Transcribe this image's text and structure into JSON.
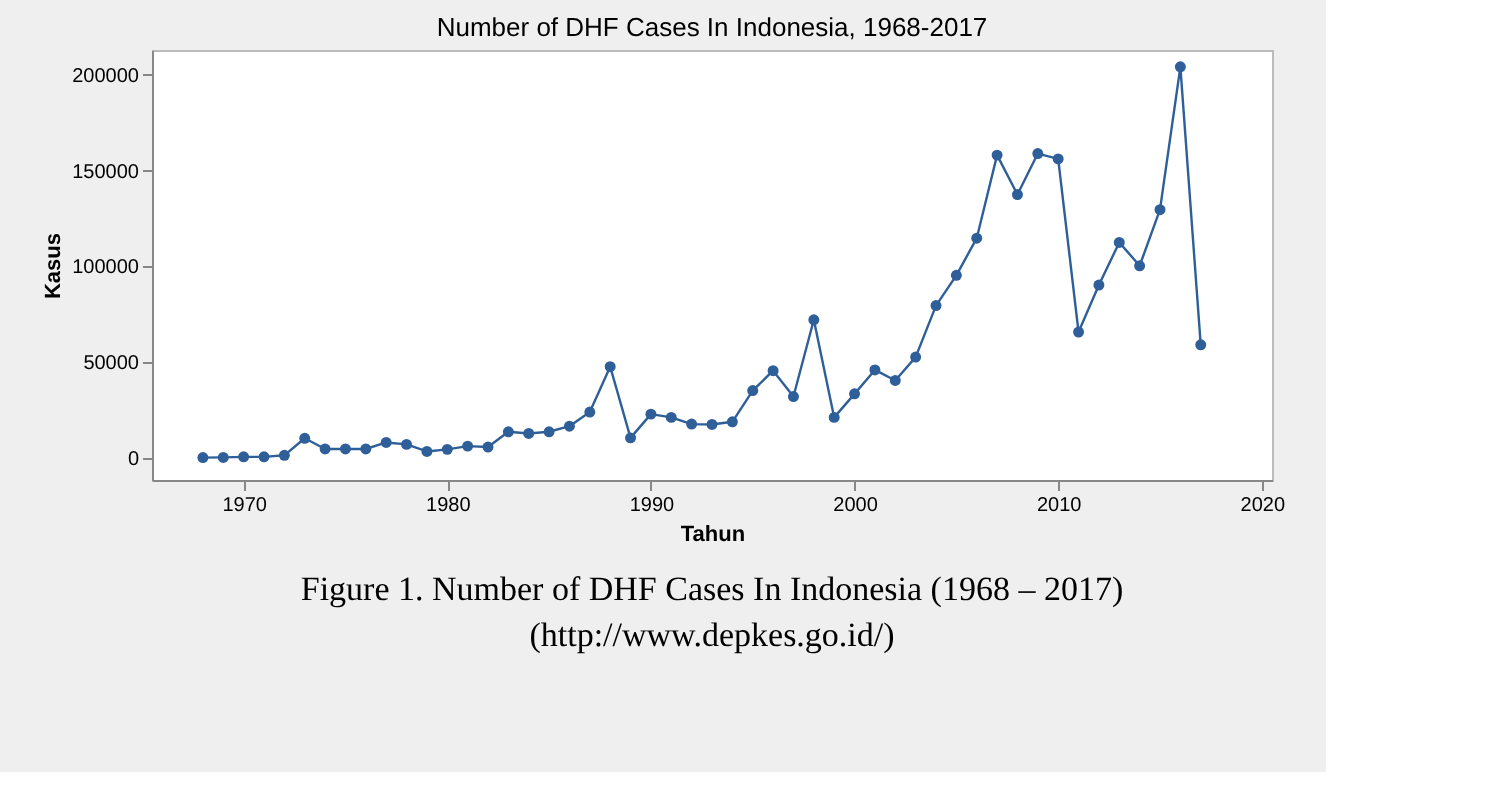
{
  "chart_data": {
    "type": "line",
    "title": "Number of DHF Cases In Indonesia, 1968-2017",
    "xlabel": "Tahun",
    "ylabel": "Kasus",
    "x": [
      1968,
      1969,
      1970,
      1971,
      1972,
      1973,
      1974,
      1975,
      1976,
      1977,
      1978,
      1979,
      1980,
      1981,
      1982,
      1983,
      1984,
      1985,
      1986,
      1987,
      1988,
      1989,
      1990,
      1991,
      1992,
      1993,
      1994,
      1995,
      1996,
      1997,
      1998,
      1999,
      2000,
      2001,
      2002,
      2003,
      2004,
      2005,
      2006,
      2007,
      2008,
      2009,
      2010,
      2011,
      2012,
      2013,
      2014,
      2015,
      2016,
      2017
    ],
    "series": [
      {
        "color": "#2f5f98",
        "values": [
          100,
          200,
          500,
          500,
          1300,
          10200,
          4600,
          4600,
          4600,
          8000,
          7000,
          3300,
          4400,
          6100,
          5600,
          13600,
          12700,
          13600,
          16500,
          23900,
          47600,
          10400,
          22800,
          21100,
          17600,
          17400,
          18800,
          35100,
          45500,
          32000,
          72100,
          21100,
          33400,
          45900,
          40400,
          52600,
          79500,
          95300,
          114700,
          158100,
          137500,
          158900,
          156100,
          65700,
          90200,
          112500,
          100300,
          129600,
          204200,
          59000
        ]
      }
    ],
    "marker": "circle",
    "line_style": "solid",
    "grid": false,
    "xlim": [
      1965.5,
      2020.5
    ],
    "xticks": [
      1970,
      1980,
      1990,
      2000,
      2010,
      2020
    ],
    "ylim": [
      -11600,
      213000
    ],
    "yticks": [
      0,
      50000,
      100000,
      150000,
      200000
    ],
    "annotations": [
      "Figure 1. Number of DHF Cases In Indonesia (1968 – 2017)",
      "(http://www.depkes.go.id/)"
    ]
  }
}
